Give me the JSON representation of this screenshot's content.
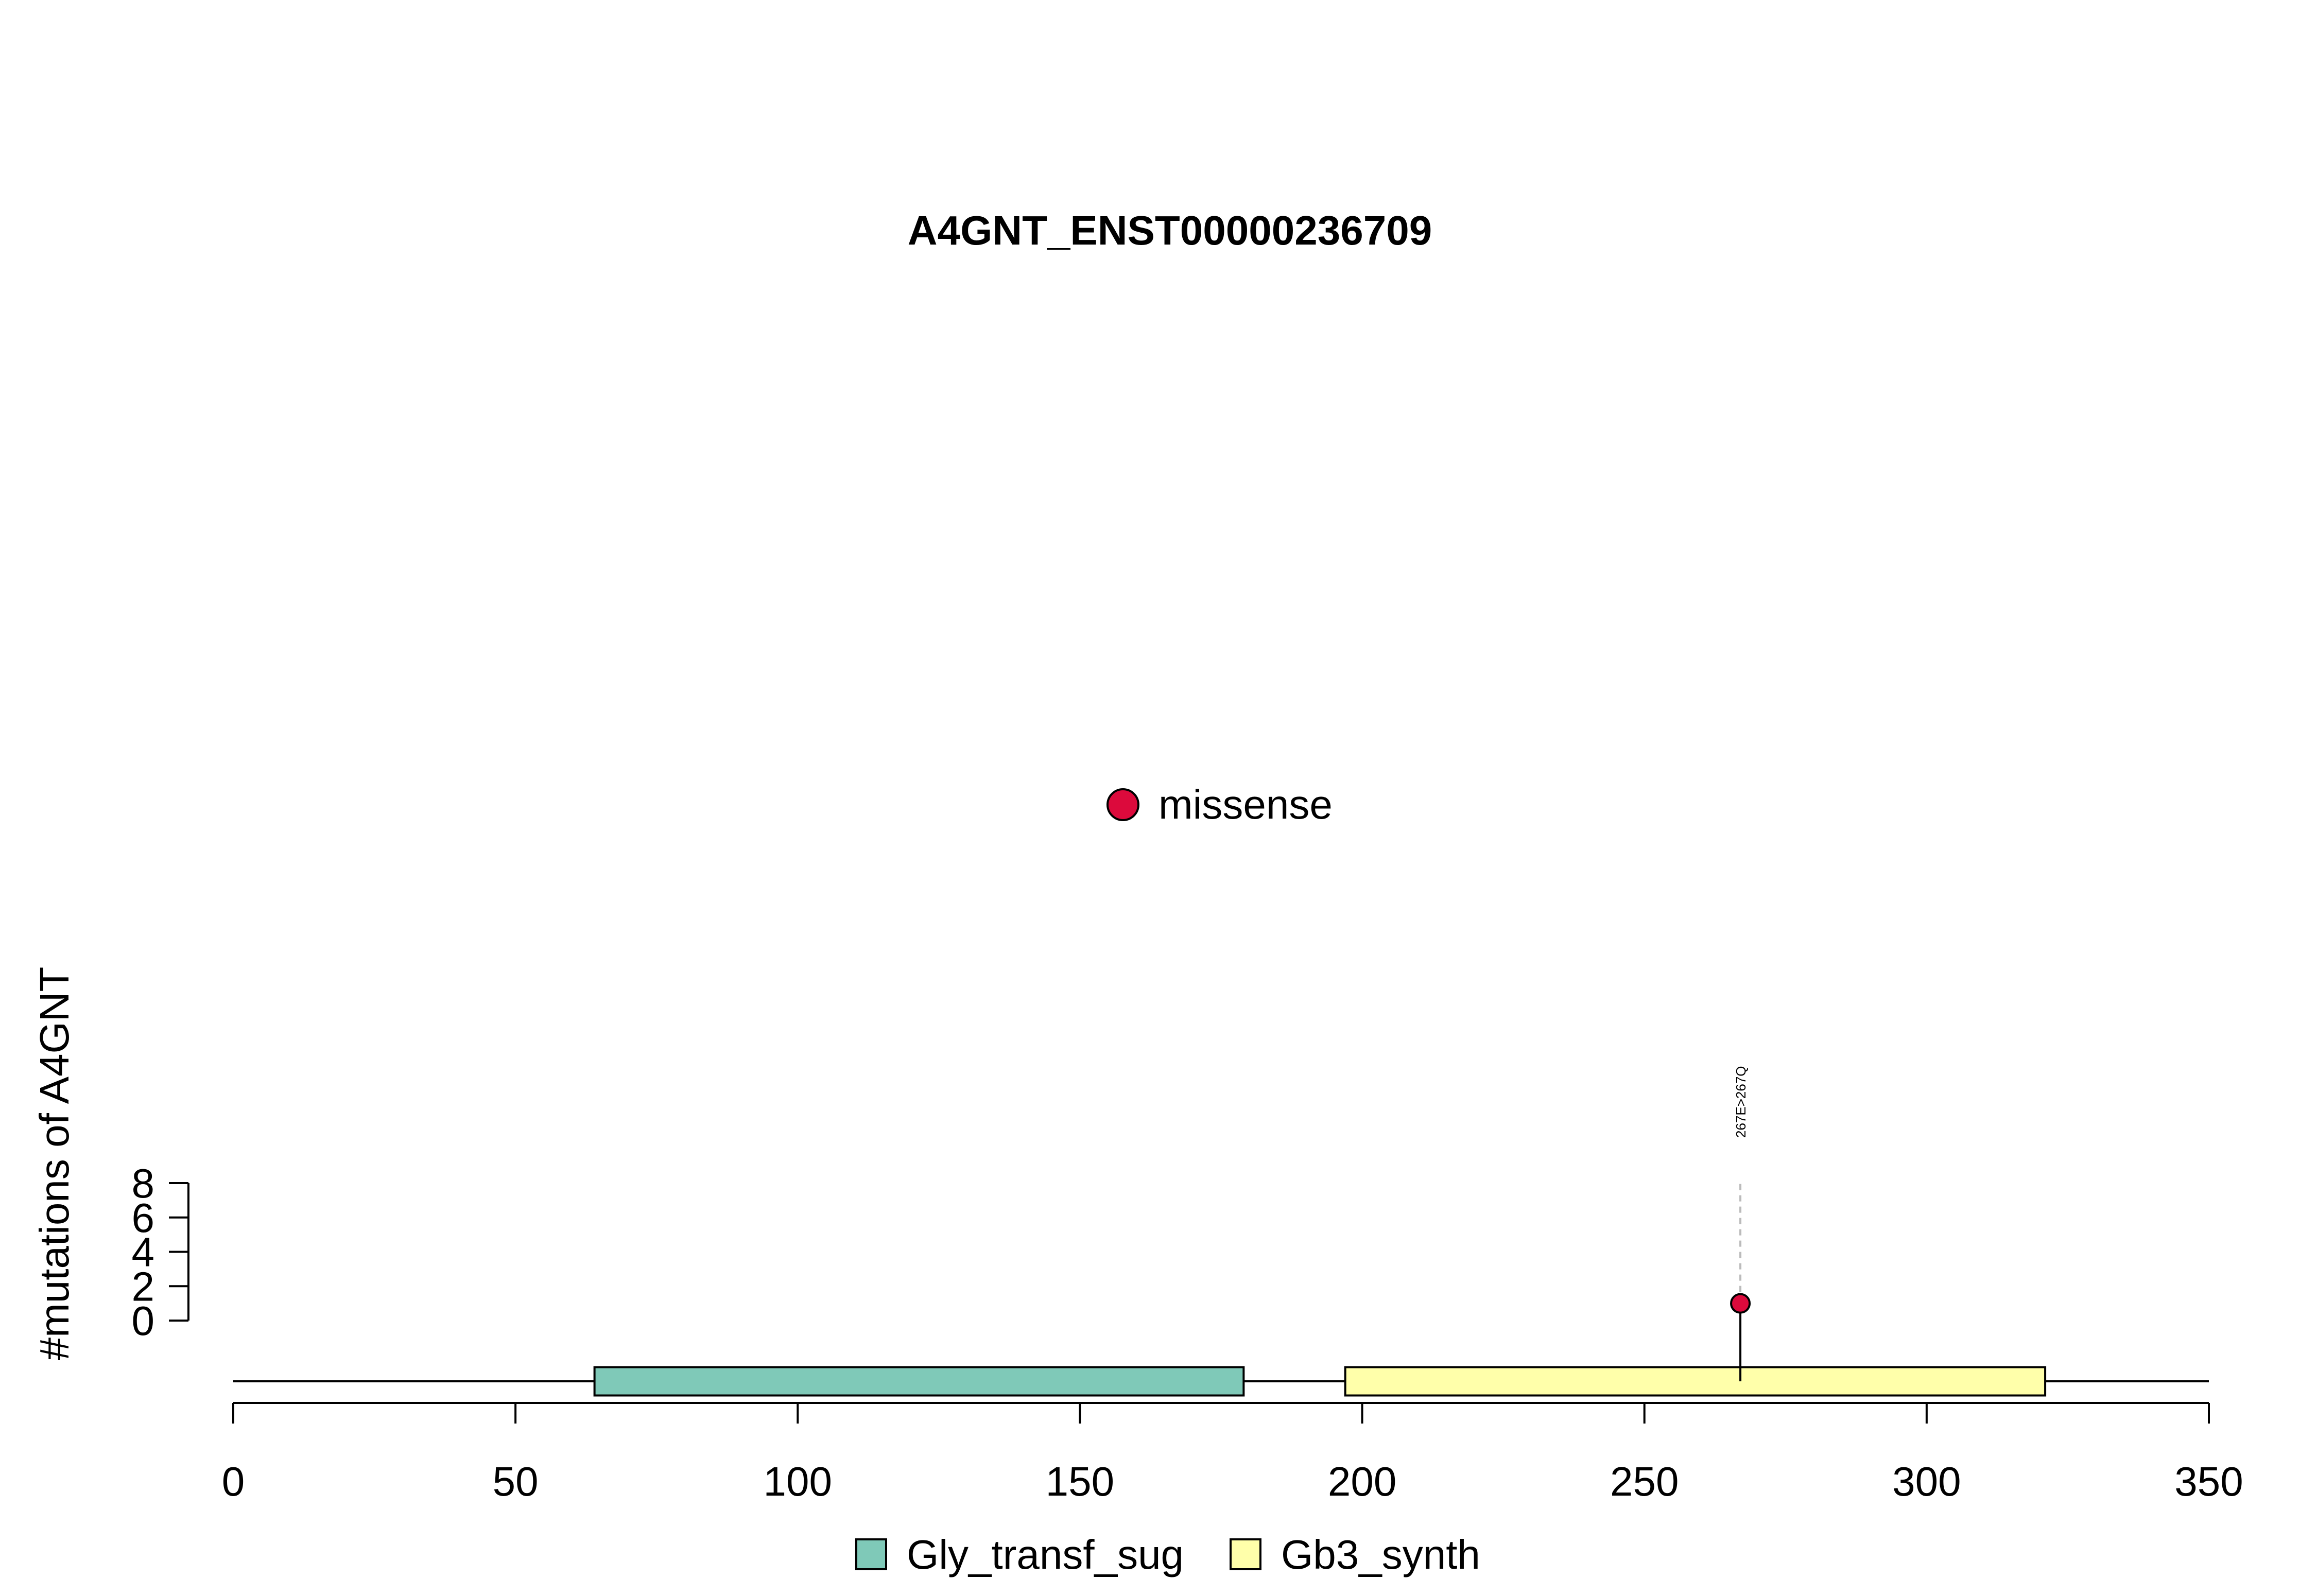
{
  "chart_data": {
    "type": "lollipop",
    "title": "A4GNT_ENST00000236709",
    "ylabel": "#mutations of A4GNT",
    "xlim": [
      0,
      350
    ],
    "x_ticks": [
      0,
      50,
      100,
      150,
      200,
      250,
      300,
      350
    ],
    "ylim": [
      0,
      8
    ],
    "y_ticks": [
      0,
      2,
      4,
      6,
      8
    ],
    "protein_length": 350,
    "domains": [
      {
        "name": "Gly_transf_sug",
        "start": 64,
        "end": 179,
        "color": "#7fc9b8"
      },
      {
        "name": "Gb3_synth",
        "start": 197,
        "end": 321,
        "color": "#ffffaa"
      }
    ],
    "mutations": [
      {
        "position": 267,
        "count": 1,
        "label": "267E>267Q",
        "type": "missense"
      }
    ],
    "mutation_legend": [
      {
        "type": "missense",
        "color": "#dc0a3c"
      }
    ]
  }
}
